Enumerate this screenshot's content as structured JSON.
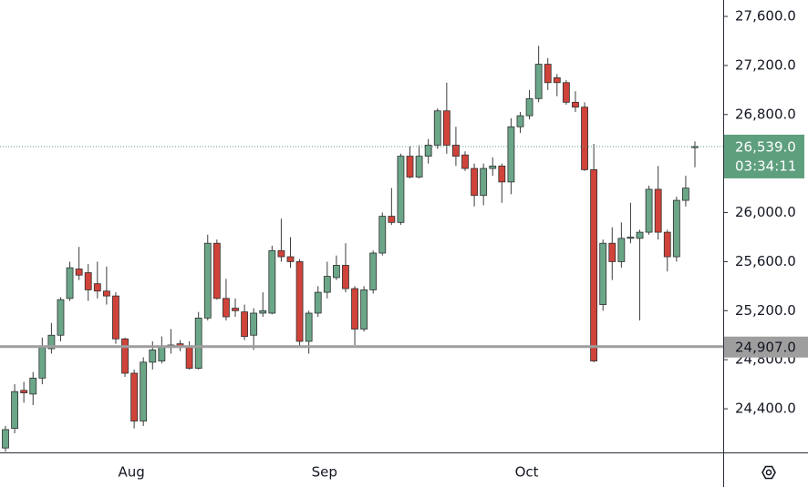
{
  "chart_data": {
    "type": "candlestick",
    "categories": [
      null,
      null,
      null,
      null,
      null,
      null,
      null,
      null,
      null,
      null,
      null,
      null,
      null,
      null,
      "Aug",
      null,
      null,
      null,
      null,
      null,
      null,
      null,
      null,
      null,
      null,
      null,
      null,
      null,
      null,
      null,
      null,
      null,
      null,
      null,
      null,
      "Sep",
      null,
      null,
      null,
      null,
      null,
      null,
      null,
      null,
      null,
      null,
      null,
      null,
      null,
      null,
      null,
      null,
      null,
      null,
      null,
      null,
      null,
      "Oct",
      null,
      null,
      null,
      null,
      null,
      null,
      null,
      null,
      null,
      null,
      null,
      null,
      null,
      null,
      null,
      null,
      null,
      null
    ],
    "open": [
      24080,
      24240,
      24550,
      24520,
      24650,
      24890,
      25000,
      25300,
      25540,
      25510,
      25420,
      25360,
      25320,
      24970,
      24690,
      24300,
      24780,
      24790,
      24900,
      24930,
      24900,
      24730,
      25140,
      25750,
      25300,
      25220,
      25190,
      25000,
      25180,
      25180,
      25690,
      25640,
      25600,
      24950,
      25180,
      25350,
      25470,
      25570,
      25380,
      25050,
      25370,
      25670,
      25970,
      25920,
      26460,
      26290,
      26460,
      26550,
      26830,
      26550,
      26470,
      26360,
      26140,
      26360,
      26380,
      26250,
      26700,
      26790,
      26930,
      27210,
      27100,
      27060,
      26900,
      26860,
      26350,
      25250,
      25750,
      25600,
      25790,
      25790,
      25840,
      26190,
      25840,
      25640,
      26100,
      26530
    ],
    "high": [
      24260,
      24600,
      24620,
      24700,
      24980,
      25100,
      25310,
      25600,
      25720,
      25580,
      25600,
      25560,
      25350,
      24980,
      24720,
      24820,
      24950,
      24990,
      25050,
      24960,
      24950,
      25190,
      25820,
      25780,
      25460,
      25300,
      25250,
      25220,
      25350,
      25730,
      25950,
      25800,
      25620,
      25200,
      25400,
      25600,
      25650,
      25750,
      25400,
      25400,
      25690,
      26000,
      26200,
      26480,
      26540,
      26550,
      26600,
      26850,
      27060,
      26700,
      26500,
      26400,
      26400,
      26450,
      26400,
      26770,
      26820,
      27000,
      27360,
      27260,
      27130,
      27080,
      26990,
      26900,
      26560,
      25780,
      25880,
      25920,
      26080,
      25860,
      26220,
      26380,
      25860,
      26130,
      26300,
      26580
    ],
    "low": [
      24050,
      24200,
      24450,
      24430,
      24600,
      24850,
      24950,
      25280,
      25450,
      25280,
      25300,
      25250,
      24930,
      24660,
      24240,
      24260,
      24720,
      24770,
      24850,
      24870,
      24720,
      24720,
      25120,
      25290,
      25120,
      25150,
      24960,
      24880,
      25150,
      25170,
      25600,
      25550,
      24900,
      24850,
      25150,
      25300,
      25450,
      25350,
      24920,
      25030,
      25340,
      25650,
      25900,
      25900,
      26280,
      26280,
      26400,
      26520,
      26480,
      26380,
      26340,
      26050,
      26060,
      26300,
      26080,
      26150,
      26650,
      26760,
      26900,
      27000,
      26950,
      26880,
      26820,
      26340,
      24780,
      25200,
      25450,
      25550,
      25750,
      25120,
      25820,
      25780,
      25520,
      25600,
      26050,
      26370
    ],
    "close": [
      24230,
      24540,
      24530,
      24650,
      24900,
      25000,
      25290,
      25550,
      25490,
      25370,
      25360,
      25320,
      24970,
      24690,
      24300,
      24780,
      24880,
      24910,
      24920,
      24900,
      24730,
      25140,
      25750,
      25300,
      25150,
      25200,
      24990,
      25180,
      25200,
      25690,
      25640,
      25600,
      24950,
      25180,
      25350,
      25480,
      25570,
      25380,
      25050,
      25370,
      25670,
      25970,
      25920,
      26460,
      26290,
      26460,
      26550,
      26830,
      26550,
      26460,
      26360,
      26140,
      26360,
      26380,
      26250,
      26700,
      26790,
      26930,
      27210,
      27060,
      27060,
      26900,
      26860,
      26350,
      24790,
      25750,
      25600,
      25790,
      25800,
      25840,
      26190,
      25840,
      25640,
      26100,
      26200,
      26539
    ],
    "up_color": "#6ba689",
    "down_color": "#d0433a",
    "ylim": [
      24044,
      27734
    ],
    "yticks": [
      {
        "value": 24400,
        "label": "24,400.0"
      },
      {
        "value": 24800,
        "label": "24,800.0"
      },
      {
        "value": 25200,
        "label": "25,200.0"
      },
      {
        "value": 25600,
        "label": "25,600.0"
      },
      {
        "value": 26000,
        "label": "26,000.0"
      },
      {
        "value": 26400,
        "label": "26,400.0"
      },
      {
        "value": 26800,
        "label": "26,800.0"
      },
      {
        "value": 27200,
        "label": "27,200.0"
      },
      {
        "value": 27600,
        "label": "27,600.0"
      }
    ],
    "price_line": {
      "value": 26539,
      "label": "26,539.0",
      "countdown": "03:34:11",
      "color": "#5e9f7e"
    },
    "horizontal_line": {
      "value": 24907,
      "label": "24,907.0",
      "color": "#9e9e9e"
    }
  }
}
